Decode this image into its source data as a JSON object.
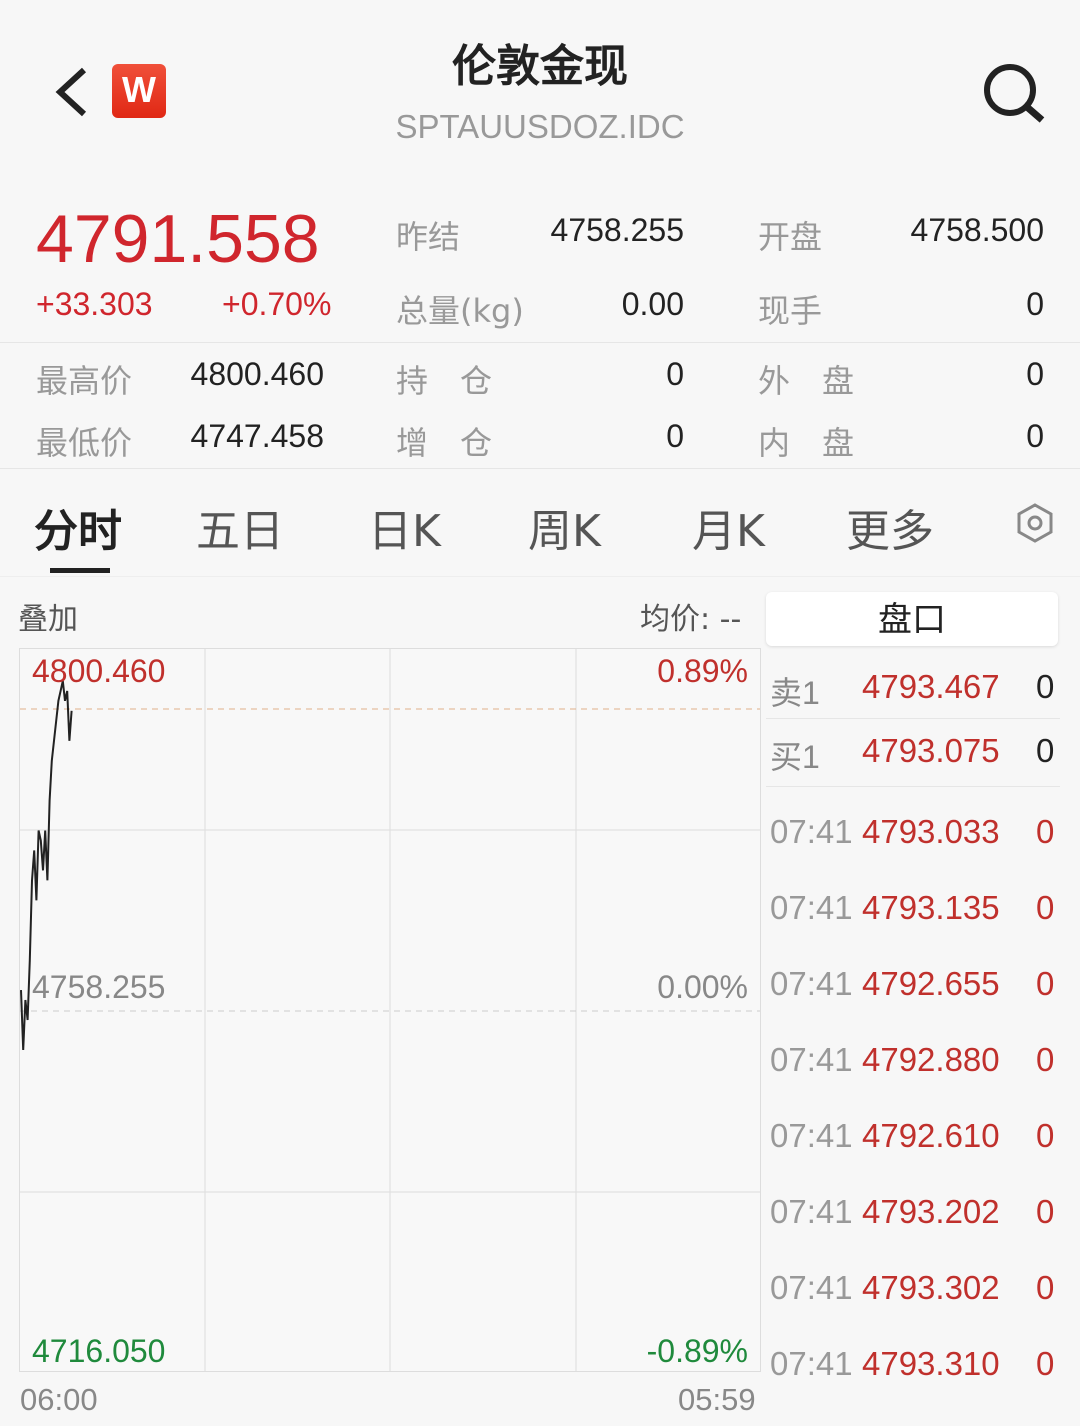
{
  "header": {
    "title": "伦敦金现",
    "code": "SPTAUUSDOZ.IDC",
    "logo_letter": "W",
    "icons": [
      "back-icon",
      "search-icon"
    ]
  },
  "quote": {
    "price": "4791.558",
    "change": "+33.303",
    "change_pct": "+0.70%",
    "fields": [
      {
        "label": "昨结",
        "value": "4758.255"
      },
      {
        "label": "开盘",
        "value": "4758.500"
      },
      {
        "label": "总量(kg)",
        "value": "0.00"
      },
      {
        "label": "现手",
        "value": "0"
      },
      {
        "label": "最高价",
        "value": "4800.460"
      },
      {
        "label": "持　仓",
        "value": "0"
      },
      {
        "label": "外　盘",
        "value": "0"
      },
      {
        "label": "最低价",
        "value": "4747.458"
      },
      {
        "label": "增　仓",
        "value": "0"
      },
      {
        "label": "内　盘",
        "value": "0"
      }
    ]
  },
  "tabs": [
    "分时",
    "五日",
    "日K",
    "周K",
    "月K",
    "更多"
  ],
  "chart": {
    "overlay": "叠加",
    "avg_label": "均价: --",
    "y_top": "4800.460",
    "y_mid": "4758.255",
    "y_bottom": "4716.050",
    "pct_top": "0.89%",
    "pct_mid": "0.00%",
    "pct_bottom": "-0.89%",
    "x_start": "06:00",
    "x_end": "05:59",
    "colors": {
      "up": "#d0262d",
      "down": "#1f8a3c",
      "line": "#222222"
    }
  },
  "chart_data": {
    "type": "line",
    "ylim": [
      4716.05,
      4800.46
    ],
    "x_range": [
      "06:00",
      "05:59"
    ],
    "values": [
      4760.59,
      4753.59,
      4759.42,
      4757.09,
      4764.08,
      4773.41,
      4776.91,
      4771.08,
      4779.24,
      4778.07,
      4774.58,
      4779.24,
      4773.41,
      4782.74,
      4787.4,
      4789.73,
      4792.07,
      4794.4,
      4795.56,
      4796.73,
      4794.4,
      4795.56,
      4789.73,
      4793.23
    ]
  },
  "orderbook": {
    "title": "盘口",
    "asks": [
      {
        "label": "卖1",
        "price": "4793.467",
        "vol": "0"
      }
    ],
    "bids": [
      {
        "label": "买1",
        "price": "4793.075",
        "vol": "0"
      }
    ],
    "trades": [
      {
        "time": "07:41",
        "price": "4793.033",
        "vol": "0"
      },
      {
        "time": "07:41",
        "price": "4793.135",
        "vol": "0"
      },
      {
        "time": "07:41",
        "price": "4792.655",
        "vol": "0"
      },
      {
        "time": "07:41",
        "price": "4792.880",
        "vol": "0"
      },
      {
        "time": "07:41",
        "price": "4792.610",
        "vol": "0"
      },
      {
        "time": "07:41",
        "price": "4793.202",
        "vol": "0"
      },
      {
        "time": "07:41",
        "price": "4793.302",
        "vol": "0"
      },
      {
        "time": "07:41",
        "price": "4793.310",
        "vol": "0"
      }
    ]
  }
}
